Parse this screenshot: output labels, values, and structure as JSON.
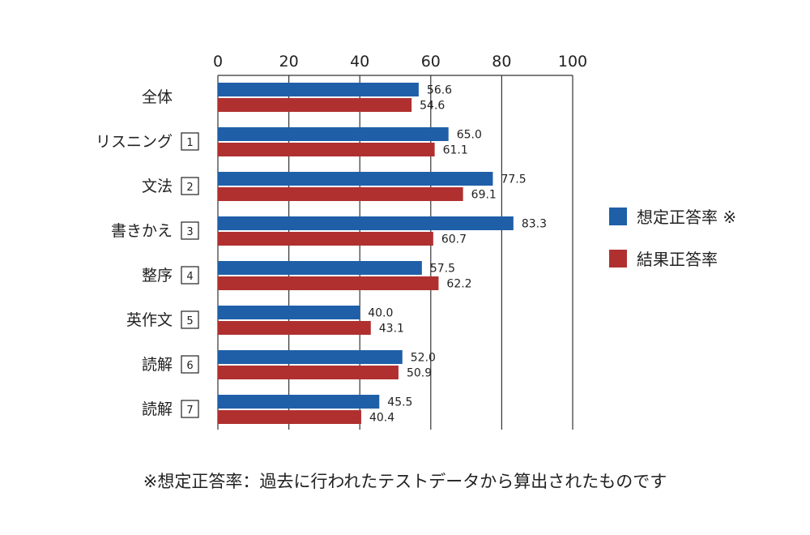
{
  "chart_data": {
    "type": "bar",
    "orientation": "horizontal",
    "categories": [
      "全体",
      "リスニング",
      "文法",
      "書きかえ",
      "整序",
      "英作文",
      "読解",
      "読解"
    ],
    "category_numbers": [
      "",
      "1",
      "2",
      "3",
      "4",
      "5",
      "6",
      "7"
    ],
    "series": [
      {
        "name": "想定正答率 ※",
        "color": "#1f5fa8",
        "values": [
          56.6,
          65.0,
          77.5,
          83.3,
          57.5,
          40.0,
          52.0,
          45.5
        ]
      },
      {
        "name": "結果正答率",
        "color": "#b03030",
        "values": [
          54.6,
          61.1,
          69.1,
          60.7,
          62.2,
          43.1,
          50.9,
          40.4
        ]
      }
    ],
    "value_labels": [
      [
        "56.6",
        "65.0",
        "77.5",
        "83.3",
        "57.5",
        "40.0",
        "52.0",
        "45.5"
      ],
      [
        "54.6",
        "61.1",
        "69.1",
        "60.7",
        "62.2",
        "43.1",
        "50.9",
        "40.4"
      ]
    ],
    "xlim": [
      0,
      100
    ],
    "ticks": [
      "0",
      "20",
      "40",
      "60",
      "80",
      "100"
    ],
    "tick_values": [
      0,
      20,
      40,
      60,
      80,
      100
    ],
    "grid": true,
    "legend_position": "right",
    "footnote": "※想定正答率：過去に行われたテストデータから算出されたものです"
  }
}
